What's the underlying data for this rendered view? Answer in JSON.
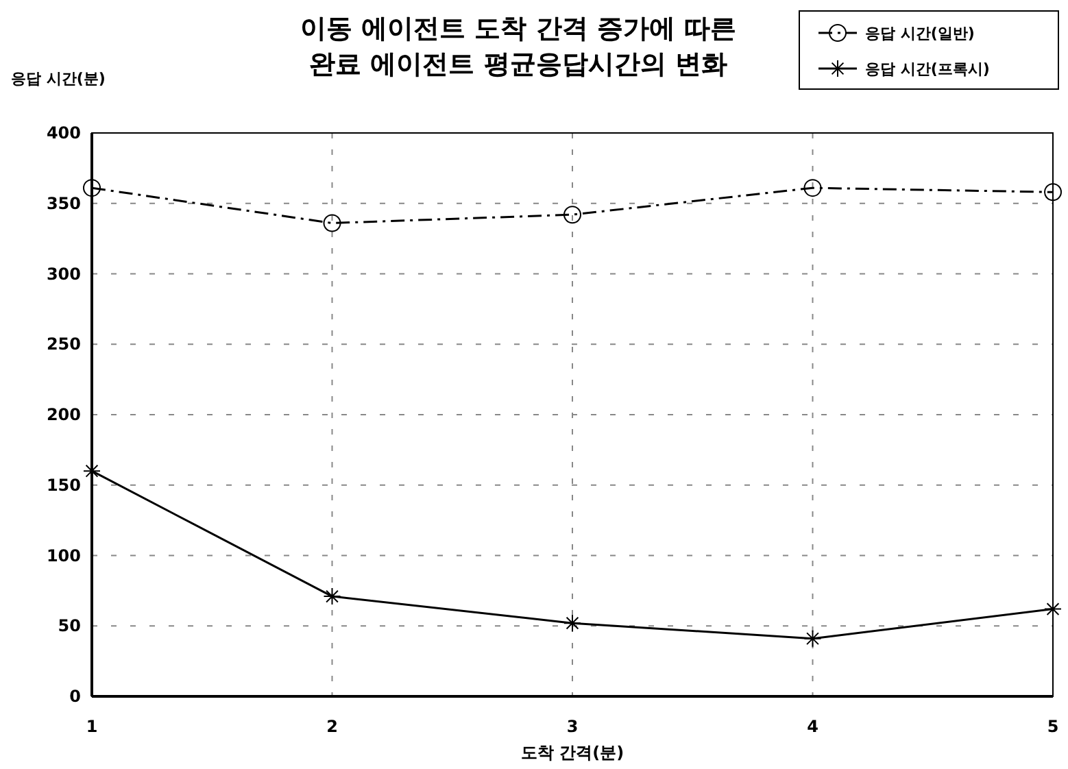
{
  "chart_data": {
    "type": "line",
    "title": "이동 에이전트 도착 간격 증가에 따른\n완료 에이전트 평균응답시간의 변화",
    "xlabel": "도착 간격(분)",
    "ylabel": "응답 시간(분)",
    "x": [
      1,
      2,
      3,
      4,
      5
    ],
    "xlim": [
      1,
      5
    ],
    "xticks": [
      1,
      2,
      3,
      4,
      5
    ],
    "ylim": [
      0,
      400
    ],
    "yticks": [
      0,
      50,
      100,
      150,
      200,
      250,
      300,
      350,
      400
    ],
    "grid": true,
    "legend": "top right",
    "series": [
      {
        "name": "응답 시간(일반)",
        "color": "#000000",
        "values": [
          361,
          336,
          342,
          361,
          358
        ],
        "marker": "circle",
        "line_style": "dashed"
      },
      {
        "name": "응답 시간(프록시)",
        "color": "#000000",
        "values": [
          160,
          71,
          52,
          41,
          62
        ],
        "marker": "cross",
        "line_style": "solid"
      }
    ]
  }
}
